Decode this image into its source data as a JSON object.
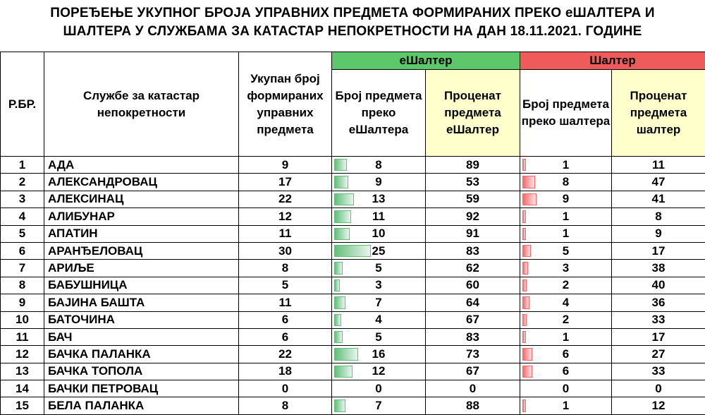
{
  "title": {
    "line1": "ПОРЕЂЕЊЕ УКУПНОГ БРОЈА УПРАВНИХ ПРЕДМЕТА ФОРМИРАНИХ ПРЕКО еШАЛТЕРА И",
    "line2": "ШАЛТЕРА У СЛУЖБАМА ЗА КАТАСТАР НЕПОКРЕТНОСТИ НА ДАН 18.11.2021. ГОДИНЕ"
  },
  "headers": {
    "rbr": "Р.БР.",
    "service": "Службе за катастар непокретности",
    "total": "Укупан број формираних управних предмета",
    "group_e": "еШалтер",
    "group_s": "Шалтер",
    "e_count": "Број предмета преко еШалтера",
    "e_pct": "Проценат предмета еШалтер",
    "s_count": "Број предмета преко шалтера",
    "s_pct": "Проценат предмета шалтер"
  },
  "colors": {
    "group_e": "#5cc86b",
    "group_s": "#ef5b5b",
    "yellow_header": "#ffffcc",
    "bar_green": "#63be7b",
    "bar_red": "#f8696b"
  },
  "rows": [
    {
      "rbr": "1",
      "name": "АДА",
      "total": "9",
      "e_count": "8",
      "e_pct": "89",
      "s_count": "1",
      "s_pct": "11"
    },
    {
      "rbr": "2",
      "name": "АЛЕКСАНДРОВАЦ",
      "total": "17",
      "e_count": "9",
      "e_pct": "53",
      "s_count": "8",
      "s_pct": "47"
    },
    {
      "rbr": "3",
      "name": "АЛЕКСИНАЦ",
      "total": "22",
      "e_count": "13",
      "e_pct": "59",
      "s_count": "9",
      "s_pct": "41"
    },
    {
      "rbr": "4",
      "name": "АЛИБУНАР",
      "total": "12",
      "e_count": "11",
      "e_pct": "92",
      "s_count": "1",
      "s_pct": "8"
    },
    {
      "rbr": "5",
      "name": "АПАТИН",
      "total": "11",
      "e_count": "10",
      "e_pct": "91",
      "s_count": "1",
      "s_pct": "9"
    },
    {
      "rbr": "6",
      "name": "АРАНЂЕЛОВАЦ",
      "total": "30",
      "e_count": "25",
      "e_pct": "83",
      "s_count": "5",
      "s_pct": "17"
    },
    {
      "rbr": "7",
      "name": "АРИЉЕ",
      "total": "8",
      "e_count": "5",
      "e_pct": "62",
      "s_count": "3",
      "s_pct": "38"
    },
    {
      "rbr": "8",
      "name": "БАБУШНИЦА",
      "total": "5",
      "e_count": "3",
      "e_pct": "60",
      "s_count": "2",
      "s_pct": "40"
    },
    {
      "rbr": "9",
      "name": "БАЈИНА БАШТА",
      "total": "11",
      "e_count": "7",
      "e_pct": "64",
      "s_count": "4",
      "s_pct": "36"
    },
    {
      "rbr": "10",
      "name": "БАТОЧИНА",
      "total": "6",
      "e_count": "4",
      "e_pct": "67",
      "s_count": "2",
      "s_pct": "33"
    },
    {
      "rbr": "11",
      "name": "БАЧ",
      "total": "6",
      "e_count": "5",
      "e_pct": "83",
      "s_count": "1",
      "s_pct": "17"
    },
    {
      "rbr": "12",
      "name": "БАЧКА ПАЛАНКА",
      "total": "22",
      "e_count": "16",
      "e_pct": "73",
      "s_count": "6",
      "s_pct": "27"
    },
    {
      "rbr": "13",
      "name": "БАЧКА ТОПОЛА",
      "total": "18",
      "e_count": "12",
      "e_pct": "67",
      "s_count": "6",
      "s_pct": "33"
    },
    {
      "rbr": "14",
      "name": "БАЧКИ ПЕТРОВАЦ",
      "total": "0",
      "e_count": "0",
      "e_pct": "0",
      "s_count": "0",
      "s_pct": "0"
    },
    {
      "rbr": "15",
      "name": "БЕЛА ПАЛАНКА",
      "total": "8",
      "e_count": "7",
      "e_pct": "88",
      "s_count": "1",
      "s_pct": "12"
    }
  ]
}
